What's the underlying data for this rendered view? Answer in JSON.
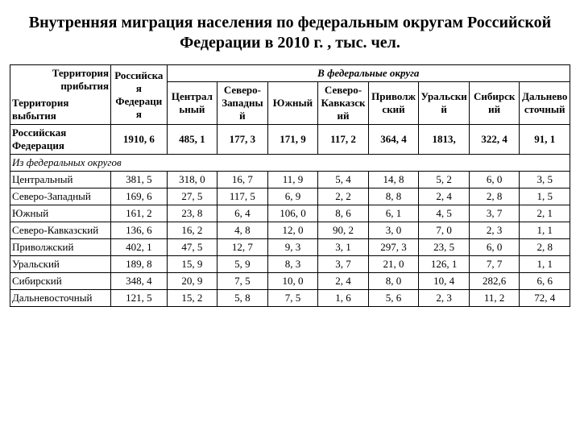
{
  "title": "Внутренняя миграция населения по федеральным округам Российской Федерации в 2010 г. , тыс. чел.",
  "header": {
    "corner_top": "Территория прибытия",
    "corner_bottom": "Территория выбытия",
    "rf_col": "Российская Федерация",
    "group": "В федеральные округа",
    "cols": [
      "Центральный",
      "Северо-Западный",
      "Южный",
      "Северо-Кавказский",
      "Приволжский",
      "Уральский",
      "Сибирский",
      "Дальневосточный"
    ]
  },
  "rf_row": {
    "label": "Российская Федерация",
    "values": [
      "1910, 6",
      "485, 1",
      "177, 3",
      "171, 9",
      "117, 2",
      "364, 4",
      "1813,",
      "322, 4",
      "91, 1"
    ]
  },
  "subhead": "Из федеральных округов",
  "rows": [
    {
      "label": "Центральный",
      "values": [
        "381, 5",
        "318, 0",
        "16, 7",
        "11, 9",
        "5, 4",
        "14, 8",
        "5, 2",
        "6, 0",
        "3, 5"
      ]
    },
    {
      "label": "Северо-Западный",
      "values": [
        "169, 6",
        "27, 5",
        "117, 5",
        "6, 9",
        "2, 2",
        "8, 8",
        "2, 4",
        "2, 8",
        "1, 5"
      ]
    },
    {
      "label": "Южный",
      "values": [
        "161, 2",
        "23, 8",
        "6, 4",
        "106, 0",
        "8, 6",
        "6, 1",
        "4, 5",
        "3, 7",
        "2, 1"
      ]
    },
    {
      "label": "Северо-Кавказский",
      "values": [
        "136, 6",
        "16, 2",
        "4, 8",
        "12, 0",
        "90, 2",
        "3, 0",
        "7, 0",
        "2, 3",
        "1, 1"
      ]
    },
    {
      "label": "Приволжский",
      "values": [
        "402, 1",
        "47, 5",
        "12, 7",
        "9, 3",
        "3, 1",
        "297, 3",
        "23, 5",
        "6, 0",
        "2, 8"
      ]
    },
    {
      "label": "Уральский",
      "values": [
        "189, 8",
        "15, 9",
        "5, 9",
        "8, 3",
        "3, 7",
        "21, 0",
        "126, 1",
        "7, 7",
        "1, 1"
      ]
    },
    {
      "label": "Сибирский",
      "values": [
        "348, 4",
        "20, 9",
        "7, 5",
        "10, 0",
        "2, 4",
        "8, 0",
        "10, 4",
        "282,6",
        "6, 6"
      ]
    },
    {
      "label": "Дальневосточный",
      "values": [
        "121, 5",
        "15, 2",
        "5, 8",
        "7, 5",
        "1, 6",
        "5, 6",
        "2, 3",
        "11, 2",
        "72, 4"
      ]
    }
  ]
}
